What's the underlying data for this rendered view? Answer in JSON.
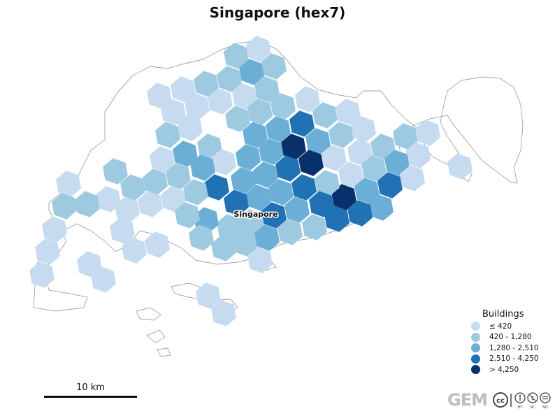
{
  "title": "Singapore (hex7)",
  "city_label": "Singapore",
  "legend": {
    "title": "Buildings",
    "items": [
      {
        "label": "≤ 420",
        "color": "#c6dbef"
      },
      {
        "label": "420 - 1,280",
        "color": "#9ecae1"
      },
      {
        "label": "1,280 - 2,510",
        "color": "#6baed6"
      },
      {
        "label": "2,510 - 4,250",
        "color": "#2171b5"
      },
      {
        "label": "> 4,250",
        "color": "#08306b"
      }
    ]
  },
  "scale_bar": {
    "label": "10 km"
  },
  "credit": {
    "brand": "GEM",
    "license": "CC BY-NC-ND"
  }
}
